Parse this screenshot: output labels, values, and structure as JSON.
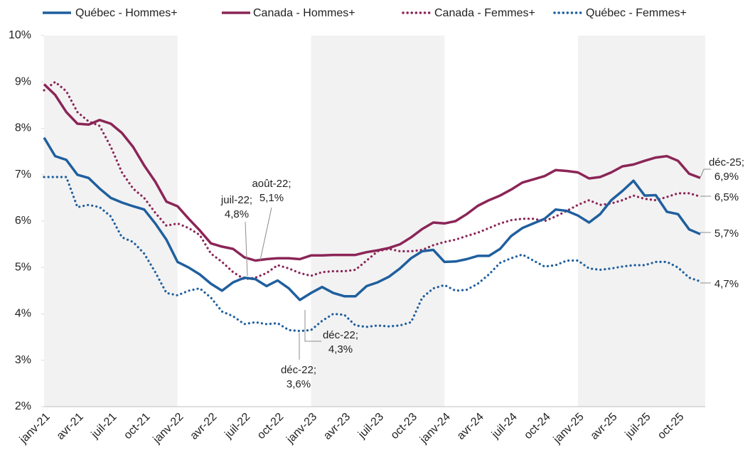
{
  "chart_data": {
    "type": "line",
    "categories": [
      "janv-21",
      null,
      null,
      "avr-21",
      null,
      null,
      "juil-21",
      null,
      null,
      "oct-21",
      null,
      null,
      "janv-22",
      null,
      null,
      "avr-22",
      null,
      null,
      "juil-22",
      null,
      null,
      "oct-22",
      null,
      null,
      "janv-23",
      null,
      null,
      "avr-23",
      null,
      null,
      "juil-23",
      null,
      null,
      "oct-23",
      null,
      null,
      "janv-24",
      null,
      null,
      "avr-24",
      null,
      null,
      "juil-24",
      null,
      null,
      "oct-24",
      null,
      null,
      "janv-25",
      null,
      null,
      "avr-25",
      null,
      null,
      "juil-25",
      null,
      null,
      "oct-25",
      null,
      null
    ],
    "series": [
      {
        "name": "Québec - Hommes+",
        "color": "#1f5f9e",
        "style": "solid",
        "values": [
          7.8,
          7.4,
          7.32,
          7.0,
          6.93,
          6.7,
          6.5,
          6.4,
          6.32,
          6.25,
          5.95,
          5.6,
          5.12,
          5.0,
          4.85,
          4.65,
          4.5,
          4.68,
          4.78,
          4.75,
          4.6,
          4.72,
          4.55,
          4.3,
          4.45,
          4.58,
          4.45,
          4.38,
          4.38,
          4.6,
          4.68,
          4.8,
          4.98,
          5.2,
          5.35,
          5.38,
          5.12,
          5.13,
          5.18,
          5.25,
          5.25,
          5.4,
          5.68,
          5.85,
          5.95,
          6.05,
          6.25,
          6.22,
          6.12,
          5.97,
          6.15,
          6.45,
          6.65,
          6.87,
          6.55,
          6.56,
          6.2,
          6.15,
          5.82,
          5.72
        ]
      },
      {
        "name": "Canada - Hommes+",
        "color": "#8b2557",
        "style": "solid",
        "values": [
          8.95,
          8.72,
          8.35,
          8.1,
          8.08,
          8.18,
          8.1,
          7.9,
          7.6,
          7.2,
          6.85,
          6.42,
          6.32,
          6.05,
          5.8,
          5.52,
          5.45,
          5.4,
          5.22,
          5.15,
          5.18,
          5.2,
          5.2,
          5.18,
          5.26,
          5.26,
          5.27,
          5.27,
          5.27,
          5.33,
          5.37,
          5.42,
          5.5,
          5.65,
          5.83,
          5.97,
          5.95,
          6.0,
          6.15,
          6.33,
          6.45,
          6.55,
          6.68,
          6.83,
          6.9,
          6.97,
          7.1,
          7.08,
          7.05,
          6.92,
          6.95,
          7.05,
          7.18,
          7.22,
          7.3,
          7.37,
          7.4,
          7.3,
          7.02,
          6.93
        ]
      },
      {
        "name": "Canada - Femmes+",
        "color": "#8b2557",
        "style": "dotted",
        "values": [
          8.82,
          9.0,
          8.8,
          8.35,
          8.15,
          8.05,
          7.6,
          7.05,
          6.7,
          6.5,
          6.18,
          5.9,
          5.95,
          5.85,
          5.7,
          5.3,
          5.12,
          4.9,
          4.75,
          4.78,
          4.88,
          5.05,
          4.98,
          4.88,
          4.82,
          4.9,
          4.92,
          4.92,
          4.95,
          5.15,
          5.35,
          5.4,
          5.35,
          5.35,
          5.38,
          5.48,
          5.55,
          5.6,
          5.68,
          5.75,
          5.85,
          5.95,
          6.02,
          6.05,
          6.05,
          6.0,
          6.1,
          6.22,
          6.35,
          6.45,
          6.35,
          6.38,
          6.45,
          6.55,
          6.48,
          6.45,
          6.52,
          6.6,
          6.6,
          6.53
        ]
      },
      {
        "name": "Québec - Femmes+",
        "color": "#1f5f9e",
        "style": "dotted",
        "values": [
          6.95,
          6.95,
          6.95,
          6.3,
          6.35,
          6.3,
          6.1,
          5.65,
          5.55,
          5.3,
          4.9,
          4.45,
          4.4,
          4.5,
          4.55,
          4.35,
          4.05,
          3.95,
          3.78,
          3.82,
          3.78,
          3.8,
          3.65,
          3.63,
          3.65,
          3.85,
          4.0,
          3.98,
          3.75,
          3.72,
          3.75,
          3.73,
          3.75,
          3.82,
          4.35,
          4.55,
          4.62,
          4.5,
          4.52,
          4.65,
          4.85,
          5.1,
          5.2,
          5.28,
          5.15,
          5.02,
          5.05,
          5.15,
          5.15,
          4.98,
          4.95,
          4.98,
          5.02,
          5.05,
          5.05,
          5.12,
          5.12,
          5.0,
          4.78,
          4.7
        ]
      }
    ],
    "ylim": [
      2,
      10
    ],
    "yticks": [
      {
        "value": 2,
        "label": "2%"
      },
      {
        "value": 3,
        "label": "3%"
      },
      {
        "value": 4,
        "label": "4%"
      },
      {
        "value": 5,
        "label": "5%"
      },
      {
        "value": 6,
        "label": "6%"
      },
      {
        "value": 7,
        "label": "7%"
      },
      {
        "value": 8,
        "label": "8%"
      },
      {
        "value": 9,
        "label": "9%"
      },
      {
        "value": 10,
        "label": "10%"
      }
    ],
    "legend": "top",
    "annotations": [
      {
        "lines": [
          "juil-22;",
          "4,8%"
        ]
      },
      {
        "lines": [
          "août-22;",
          "5,1%"
        ]
      },
      {
        "lines": [
          "déc-22;",
          "4,3%"
        ]
      },
      {
        "lines": [
          "déc-22;",
          "3,6%"
        ]
      },
      {
        "lines": [
          "déc-25;",
          "6,9%"
        ]
      },
      {
        "lines": [
          "6,5%"
        ]
      },
      {
        "lines": [
          "5,7%"
        ]
      },
      {
        "lines": [
          "4,7%"
        ]
      }
    ]
  }
}
